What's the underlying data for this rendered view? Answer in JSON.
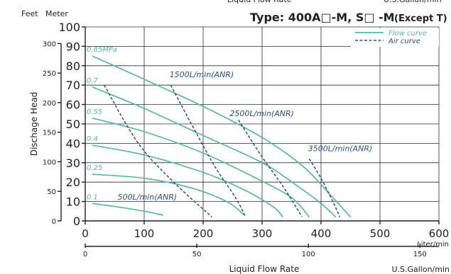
{
  "chart_data": {
    "type": "line",
    "title": "Type: 400A□-M, S□ -M",
    "title_suffix": "(Except T)",
    "cropped_top_labels": [
      "Liquid Flow Rate",
      "U.S.Gallon/min"
    ],
    "ylabel": "Dischage Head",
    "y_unit_left": "Feet",
    "y_unit_right": "Meter",
    "ylim": [
      0,
      100
    ],
    "xlim": [
      0,
      600
    ],
    "x_unit": "Liter/min",
    "x2_unit": "U.S.Gallon/min",
    "x2_label": "Liquid Flow Rate",
    "grid": true,
    "legend_position": "top-right",
    "legend": [
      {
        "label": "Flow curve",
        "style": "solid",
        "color": "#5ab79a"
      },
      {
        "label": "Air curve",
        "style": "dashed",
        "color": "#2d4f86"
      }
    ],
    "x_ticks": [
      "0",
      "100",
      "200",
      "300",
      "400",
      "500",
      "600"
    ],
    "y_ticks_meter": [
      "0",
      "10",
      "20",
      "30",
      "40",
      "50",
      "60",
      "70",
      "80",
      "90",
      "100"
    ],
    "y_ticks_feet": [
      "0",
      "50",
      "100",
      "150",
      "200",
      "250",
      "300"
    ],
    "x2_ticks": [
      "0",
      "50",
      "100",
      "150"
    ],
    "flow_curves": [
      {
        "name": "0.85MPa",
        "points": [
          [
            12,
            85
          ],
          [
            100,
            73
          ],
          [
            200,
            59
          ],
          [
            300,
            43
          ],
          [
            370,
            28
          ],
          [
            420,
            12
          ],
          [
            450,
            2
          ]
        ]
      },
      {
        "name": "0.7",
        "points": [
          [
            12,
            69
          ],
          [
            100,
            58
          ],
          [
            200,
            44
          ],
          [
            300,
            30
          ],
          [
            360,
            18
          ],
          [
            400,
            9
          ],
          [
            425,
            2
          ]
        ]
      },
      {
        "name": "0.55",
        "points": [
          [
            12,
            53
          ],
          [
            100,
            46
          ],
          [
            200,
            35
          ],
          [
            290,
            22
          ],
          [
            350,
            12
          ],
          [
            380,
            2
          ]
        ]
      },
      {
        "name": "0.4",
        "points": [
          [
            12,
            39
          ],
          [
            100,
            34
          ],
          [
            200,
            25
          ],
          [
            270,
            16
          ],
          [
            320,
            7
          ],
          [
            335,
            2
          ]
        ]
      },
      {
        "name": "0.25",
        "points": [
          [
            12,
            24
          ],
          [
            100,
            22
          ],
          [
            180,
            17
          ],
          [
            240,
            10
          ],
          [
            270,
            3
          ]
        ]
      },
      {
        "name": "0.1",
        "points": [
          [
            12,
            9
          ],
          [
            60,
            7
          ],
          [
            100,
            5
          ],
          [
            132,
            3
          ]
        ]
      }
    ],
    "air_curves": [
      {
        "name": "500L/min(ANR)",
        "label_at": [
          55,
          11
        ],
        "points": [
          [
            32,
            70
          ],
          [
            90,
            40
          ],
          [
            150,
            20
          ],
          [
            215,
            2
          ]
        ]
      },
      {
        "name": "1500L/min(ANR)",
        "label_at": [
          143,
          74
        ],
        "points": [
          [
            145,
            70
          ],
          [
            180,
            50
          ],
          [
            220,
            28
          ],
          [
            255,
            12
          ],
          [
            272,
            2
          ]
        ]
      },
      {
        "name": "2500L/min(ANR)",
        "label_at": [
          245,
          54
        ],
        "points": [
          [
            260,
            52
          ],
          [
            300,
            33
          ],
          [
            335,
            18
          ],
          [
            360,
            6
          ],
          [
            368,
            2
          ]
        ]
      },
      {
        "name": "3500L/min(ANR)",
        "label_at": [
          378,
          36
        ],
        "points": [
          [
            380,
            32
          ],
          [
            400,
            22
          ],
          [
            420,
            10
          ],
          [
            432,
            2
          ]
        ]
      }
    ]
  }
}
